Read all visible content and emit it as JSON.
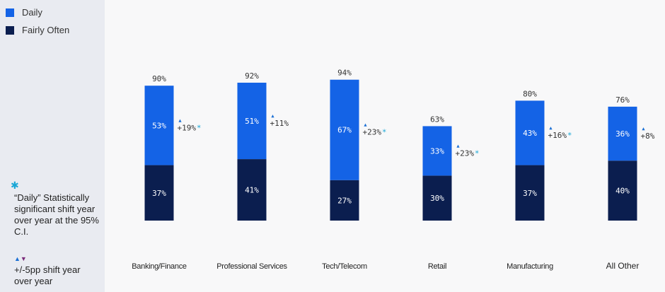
{
  "legend": [
    {
      "label": "Daily",
      "color": "#1463e6"
    },
    {
      "label": "Fairly Often",
      "color": "#0b1e4f"
    }
  ],
  "notes": {
    "star_symbol": "✱",
    "star_text": "“Daily” Statistically significant shift year over year at the 95% C.I.",
    "shift_up_symbol": "▲",
    "shift_down_symbol": "▼",
    "shift_text": "+/-5pp shift year over year"
  },
  "chart_data": {
    "type": "bar",
    "stacked": true,
    "categories": [
      "Banking/Finance",
      "Professional Services",
      "Tech/Telecom",
      "Retail",
      "Manufacturing",
      "All Other"
    ],
    "series": [
      {
        "name": "Fairly Often",
        "values": [
          37,
          41,
          27,
          30,
          37,
          40
        ],
        "labels": [
          "37%",
          "41%",
          "27%",
          "30%",
          "37%",
          "40%"
        ]
      },
      {
        "name": "Daily",
        "values": [
          53,
          51,
          67,
          33,
          43,
          36
        ],
        "labels": [
          "53%",
          "51%",
          "67%",
          "33%",
          "43%",
          "36%"
        ]
      }
    ],
    "totals": [
      "90%",
      "92%",
      "94%",
      "63%",
      "80%",
      "76%"
    ],
    "shifts": [
      {
        "arrow": "▲",
        "text": "+19%",
        "star": "*"
      },
      {
        "arrow": "▲",
        "text": "+11%",
        "star": ""
      },
      {
        "arrow": "▲",
        "text": "+23%",
        "star": "*"
      },
      {
        "arrow": "▲",
        "text": "+23%",
        "star": "*"
      },
      {
        "arrow": "▲",
        "text": "+16%",
        "star": "*"
      },
      {
        "arrow": "▲",
        "text": "+8%",
        "star": ""
      }
    ],
    "colors": {
      "Daily": "#1463e6",
      "Fairly Often": "#0b1e4f",
      "arrow": "#1a6fd4",
      "star": "#1aa7d6"
    },
    "ylim": [
      0,
      100
    ]
  }
}
